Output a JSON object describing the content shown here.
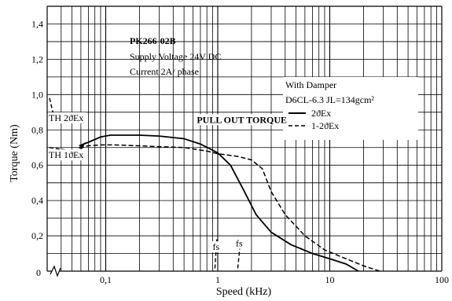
{
  "chart_data": {
    "type": "line",
    "title": "PK266-02B",
    "subtitle_lines": [
      "Supply Voltage 24V DC",
      "Current 2A/ phase"
    ],
    "xlabel": "Speed (kHz)",
    "ylabel": "Torque (Nm)",
    "x_scale": "log",
    "x_axis_break": true,
    "xlim": [
      0.03,
      100
    ],
    "ylim": [
      0,
      1.5
    ],
    "x_ticks": [
      {
        "value": 0.1,
        "label": "0,1"
      },
      {
        "value": 1,
        "label": "1"
      },
      {
        "value": 10,
        "label": "10"
      },
      {
        "value": 100,
        "label": "100"
      }
    ],
    "y_ticks": [
      {
        "value": 0,
        "label": "0"
      },
      {
        "value": 0.2,
        "label": "0,2"
      },
      {
        "value": 0.4,
        "label": "0,4"
      },
      {
        "value": 0.6,
        "label": "0,6"
      },
      {
        "value": 0.8,
        "label": "0,8"
      },
      {
        "value": 1.0,
        "label": "1,0"
      },
      {
        "value": 1.2,
        "label": "1,2"
      },
      {
        "value": 1.4,
        "label": "1,4"
      }
    ],
    "grid": true,
    "legend": {
      "title_lines": [
        "With Damper",
        "D6CL-6.3  JL=134gcm²"
      ],
      "placement": "top-right"
    },
    "series": [
      {
        "name": "2ϑEx",
        "style": "solid",
        "x": [
          0.058,
          0.07,
          0.09,
          0.11,
          0.2,
          0.3,
          0.5,
          0.7,
          1.0,
          1.3,
          1.7,
          2.2,
          3.0,
          4.5,
          7,
          10,
          14,
          18
        ],
        "y": [
          0.71,
          0.73,
          0.76,
          0.77,
          0.77,
          0.765,
          0.75,
          0.72,
          0.67,
          0.6,
          0.46,
          0.32,
          0.22,
          0.15,
          0.1,
          0.07,
          0.04,
          0.0
        ]
      },
      {
        "name": "1-2ϑEx",
        "style": "dashed",
        "x": [
          0.058,
          0.07,
          0.09,
          0.12,
          0.2,
          0.3,
          0.5,
          0.8,
          1.0,
          1.5,
          2.0,
          2.5,
          3.0,
          4.0,
          6,
          9,
          14,
          20,
          28
        ],
        "y": [
          0.7,
          0.71,
          0.715,
          0.715,
          0.71,
          0.705,
          0.7,
          0.68,
          0.665,
          0.65,
          0.63,
          0.58,
          0.45,
          0.32,
          0.2,
          0.12,
          0.07,
          0.03,
          0.0
        ]
      }
    ],
    "annotations": [
      {
        "text": "PULL OUT TORQUE",
        "x": 0.65,
        "y": 0.84
      },
      {
        "text": "TH 2ϑEx",
        "x": 0.031,
        "y": 0.85
      },
      {
        "text": "TH 1ϑEx",
        "x": 0.031,
        "y": 0.64
      },
      {
        "text": "fs",
        "x": 0.9,
        "y": 0.12
      },
      {
        "text": "fs",
        "x": 1.45,
        "y": 0.14
      }
    ],
    "th_curves": [
      {
        "name": "TH 2ϑEx",
        "style": "dashed",
        "x": [
          0.0315,
          0.034
        ],
        "y": [
          0.98,
          0.89
        ]
      },
      {
        "name": "TH 1ϑEx",
        "style": "dashed",
        "x": [
          0.0315,
          0.04,
          0.05,
          0.058
        ],
        "y": [
          0.7,
          0.69,
          0.68,
          0.67
        ]
      }
    ],
    "fs_curves": [
      {
        "style": "dashed",
        "x": [
          0.98,
          0.96,
          0.94
        ],
        "y": [
          0.18,
          0.09,
          0.0
        ]
      },
      {
        "style": "dashed",
        "x": [
          1.6,
          1.55,
          1.5
        ],
        "y": [
          0.18,
          0.09,
          0.0
        ]
      }
    ]
  }
}
